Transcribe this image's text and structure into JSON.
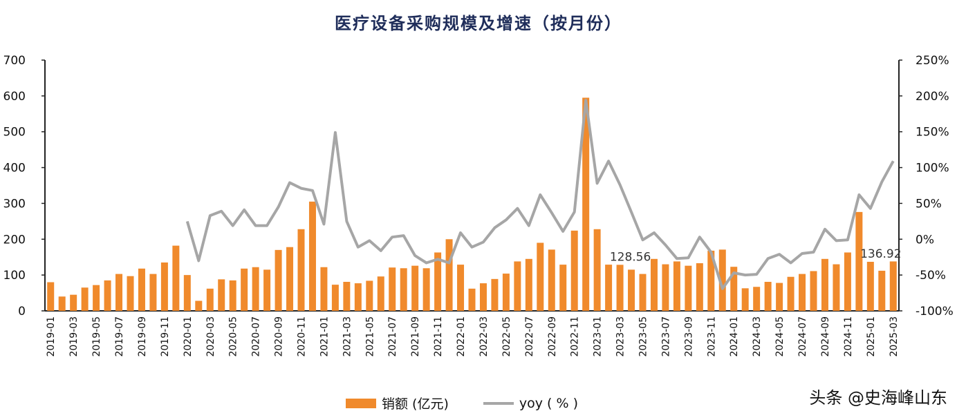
{
  "chart_data": {
    "type": "bar+line",
    "title": "医疗设备采购规模及增速（按月份）",
    "categories": [
      "2019-01",
      "2019-02",
      "2019-03",
      "2019-04",
      "2019-05",
      "2019-06",
      "2019-07",
      "2019-08",
      "2019-09",
      "2019-10",
      "2019-11",
      "2019-12",
      "2020-01",
      "2020-02",
      "2020-03",
      "2020-04",
      "2020-05",
      "2020-06",
      "2020-07",
      "2020-08",
      "2020-09",
      "2020-10",
      "2020-11",
      "2020-12",
      "2021-01",
      "2021-02",
      "2021-03",
      "2021-04",
      "2021-05",
      "2021-06",
      "2021-07",
      "2021-08",
      "2021-09",
      "2021-10",
      "2021-11",
      "2021-12",
      "2022-01",
      "2022-02",
      "2022-03",
      "2022-04",
      "2022-05",
      "2022-06",
      "2022-07",
      "2022-08",
      "2022-09",
      "2022-10",
      "2022-11",
      "2022-12",
      "2023-01",
      "2023-02",
      "2023-03",
      "2023-04",
      "2023-05",
      "2023-06",
      "2023-07",
      "2023-08",
      "2023-09",
      "2023-10",
      "2023-11",
      "2023-12",
      "2024-01",
      "2024-02",
      "2024-03",
      "2024-04",
      "2024-05",
      "2024-06",
      "2024-07",
      "2024-08",
      "2024-09",
      "2024-10",
      "2024-11",
      "2024-12",
      "2025-01",
      "2025-02",
      "2025-03"
    ],
    "series": [
      {
        "name": "销额 (亿元)",
        "type": "bar",
        "axis": "left",
        "color": "#f08a2c",
        "values": [
          80,
          40,
          45,
          65,
          72,
          85,
          103,
          97,
          118,
          103,
          135,
          182,
          100,
          28,
          62,
          88,
          85,
          118,
          122,
          115,
          170,
          178,
          228,
          305,
          122,
          73,
          81,
          77,
          84,
          96,
          121,
          119,
          126,
          119,
          163,
          200,
          129,
          62,
          77,
          89,
          104,
          138,
          145,
          190,
          171,
          129,
          224,
          595,
          228,
          129,
          128.56,
          115,
          103,
          145,
          130,
          138,
          126,
          133,
          168,
          171,
          123,
          63,
          67,
          81,
          78,
          95,
          103,
          111,
          145,
          130,
          163,
          276,
          136.92,
          112,
          138
        ]
      },
      {
        "name": "yoy ( % )",
        "type": "line",
        "axis": "right",
        "color": "#a6a6a6",
        "values": [
          null,
          null,
          null,
          null,
          null,
          null,
          null,
          null,
          null,
          null,
          null,
          null,
          25,
          -30,
          33,
          39,
          19,
          41,
          19,
          19,
          45,
          79,
          71,
          68,
          21,
          149,
          25,
          -11,
          -2,
          -16,
          3,
          5,
          -23,
          -33,
          -28,
          -33,
          9,
          -11,
          -4,
          16,
          27,
          43,
          19,
          62,
          37,
          11,
          38,
          194,
          78,
          109,
          76,
          38,
          -1,
          9,
          -8,
          -27,
          -26,
          3,
          -18,
          -69,
          -47,
          -50,
          -49,
          -27,
          -21,
          -33,
          -20,
          -18,
          14,
          -2,
          -1,
          62,
          43,
          80,
          109
        ]
      }
    ],
    "left_axis": {
      "min": 0,
      "max": 700,
      "ticks": [
        "0",
        "100",
        "200",
        "300",
        "400",
        "500",
        "600",
        "700"
      ]
    },
    "right_axis": {
      "min": -100,
      "max": 250,
      "ticks": [
        "-100%",
        "-50%",
        "0%",
        "50%",
        "100%",
        "150%",
        "200%",
        "250%"
      ]
    },
    "data_labels": [
      {
        "category": "2023-03",
        "text": "128.56"
      },
      {
        "category": "2025-01",
        "text": "136.92"
      }
    ],
    "legend": {
      "position": "bottom",
      "bar_label": "销额 (亿元)",
      "line_label": "yoy ( % )"
    }
  },
  "watermark": "头条 @史海峰山东"
}
